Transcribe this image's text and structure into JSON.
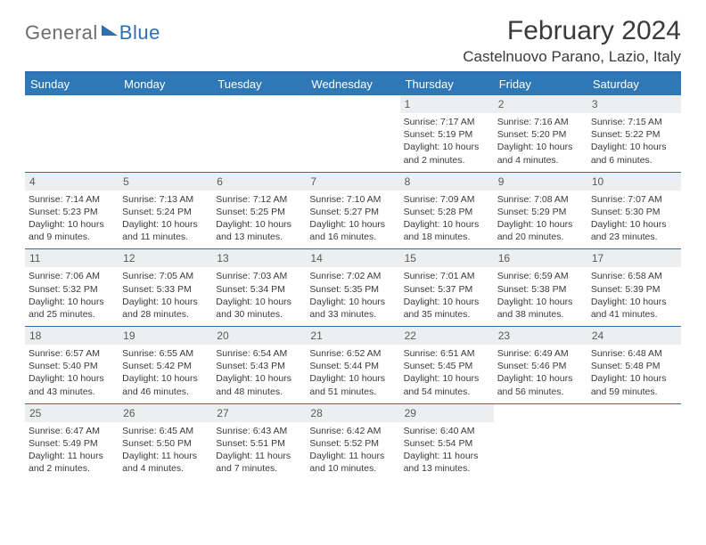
{
  "brand": {
    "part1": "General",
    "part2": "Blue"
  },
  "title": "February 2024",
  "location": "Castelnuovo Parano, Lazio, Italy",
  "colors": {
    "header_bg": "#2f78b8",
    "header_text": "#ffffff",
    "accent": "#2f6fb0",
    "daynum_bg": "#eceeef",
    "text": "#3a3a3a",
    "logo_gray": "#6e6e6e"
  },
  "weekdays": [
    "Sunday",
    "Monday",
    "Tuesday",
    "Wednesday",
    "Thursday",
    "Friday",
    "Saturday"
  ],
  "weeks": [
    [
      {
        "n": "",
        "sunrise": "",
        "sunset": "",
        "daylight": ""
      },
      {
        "n": "",
        "sunrise": "",
        "sunset": "",
        "daylight": ""
      },
      {
        "n": "",
        "sunrise": "",
        "sunset": "",
        "daylight": ""
      },
      {
        "n": "",
        "sunrise": "",
        "sunset": "",
        "daylight": ""
      },
      {
        "n": "1",
        "sunrise": "Sunrise: 7:17 AM",
        "sunset": "Sunset: 5:19 PM",
        "daylight": "Daylight: 10 hours and 2 minutes."
      },
      {
        "n": "2",
        "sunrise": "Sunrise: 7:16 AM",
        "sunset": "Sunset: 5:20 PM",
        "daylight": "Daylight: 10 hours and 4 minutes."
      },
      {
        "n": "3",
        "sunrise": "Sunrise: 7:15 AM",
        "sunset": "Sunset: 5:22 PM",
        "daylight": "Daylight: 10 hours and 6 minutes."
      }
    ],
    [
      {
        "n": "4",
        "sunrise": "Sunrise: 7:14 AM",
        "sunset": "Sunset: 5:23 PM",
        "daylight": "Daylight: 10 hours and 9 minutes."
      },
      {
        "n": "5",
        "sunrise": "Sunrise: 7:13 AM",
        "sunset": "Sunset: 5:24 PM",
        "daylight": "Daylight: 10 hours and 11 minutes."
      },
      {
        "n": "6",
        "sunrise": "Sunrise: 7:12 AM",
        "sunset": "Sunset: 5:25 PM",
        "daylight": "Daylight: 10 hours and 13 minutes."
      },
      {
        "n": "7",
        "sunrise": "Sunrise: 7:10 AM",
        "sunset": "Sunset: 5:27 PM",
        "daylight": "Daylight: 10 hours and 16 minutes."
      },
      {
        "n": "8",
        "sunrise": "Sunrise: 7:09 AM",
        "sunset": "Sunset: 5:28 PM",
        "daylight": "Daylight: 10 hours and 18 minutes."
      },
      {
        "n": "9",
        "sunrise": "Sunrise: 7:08 AM",
        "sunset": "Sunset: 5:29 PM",
        "daylight": "Daylight: 10 hours and 20 minutes."
      },
      {
        "n": "10",
        "sunrise": "Sunrise: 7:07 AM",
        "sunset": "Sunset: 5:30 PM",
        "daylight": "Daylight: 10 hours and 23 minutes."
      }
    ],
    [
      {
        "n": "11",
        "sunrise": "Sunrise: 7:06 AM",
        "sunset": "Sunset: 5:32 PM",
        "daylight": "Daylight: 10 hours and 25 minutes."
      },
      {
        "n": "12",
        "sunrise": "Sunrise: 7:05 AM",
        "sunset": "Sunset: 5:33 PM",
        "daylight": "Daylight: 10 hours and 28 minutes."
      },
      {
        "n": "13",
        "sunrise": "Sunrise: 7:03 AM",
        "sunset": "Sunset: 5:34 PM",
        "daylight": "Daylight: 10 hours and 30 minutes."
      },
      {
        "n": "14",
        "sunrise": "Sunrise: 7:02 AM",
        "sunset": "Sunset: 5:35 PM",
        "daylight": "Daylight: 10 hours and 33 minutes."
      },
      {
        "n": "15",
        "sunrise": "Sunrise: 7:01 AM",
        "sunset": "Sunset: 5:37 PM",
        "daylight": "Daylight: 10 hours and 35 minutes."
      },
      {
        "n": "16",
        "sunrise": "Sunrise: 6:59 AM",
        "sunset": "Sunset: 5:38 PM",
        "daylight": "Daylight: 10 hours and 38 minutes."
      },
      {
        "n": "17",
        "sunrise": "Sunrise: 6:58 AM",
        "sunset": "Sunset: 5:39 PM",
        "daylight": "Daylight: 10 hours and 41 minutes."
      }
    ],
    [
      {
        "n": "18",
        "sunrise": "Sunrise: 6:57 AM",
        "sunset": "Sunset: 5:40 PM",
        "daylight": "Daylight: 10 hours and 43 minutes."
      },
      {
        "n": "19",
        "sunrise": "Sunrise: 6:55 AM",
        "sunset": "Sunset: 5:42 PM",
        "daylight": "Daylight: 10 hours and 46 minutes."
      },
      {
        "n": "20",
        "sunrise": "Sunrise: 6:54 AM",
        "sunset": "Sunset: 5:43 PM",
        "daylight": "Daylight: 10 hours and 48 minutes."
      },
      {
        "n": "21",
        "sunrise": "Sunrise: 6:52 AM",
        "sunset": "Sunset: 5:44 PM",
        "daylight": "Daylight: 10 hours and 51 minutes."
      },
      {
        "n": "22",
        "sunrise": "Sunrise: 6:51 AM",
        "sunset": "Sunset: 5:45 PM",
        "daylight": "Daylight: 10 hours and 54 minutes."
      },
      {
        "n": "23",
        "sunrise": "Sunrise: 6:49 AM",
        "sunset": "Sunset: 5:46 PM",
        "daylight": "Daylight: 10 hours and 56 minutes."
      },
      {
        "n": "24",
        "sunrise": "Sunrise: 6:48 AM",
        "sunset": "Sunset: 5:48 PM",
        "daylight": "Daylight: 10 hours and 59 minutes."
      }
    ],
    [
      {
        "n": "25",
        "sunrise": "Sunrise: 6:47 AM",
        "sunset": "Sunset: 5:49 PM",
        "daylight": "Daylight: 11 hours and 2 minutes."
      },
      {
        "n": "26",
        "sunrise": "Sunrise: 6:45 AM",
        "sunset": "Sunset: 5:50 PM",
        "daylight": "Daylight: 11 hours and 4 minutes."
      },
      {
        "n": "27",
        "sunrise": "Sunrise: 6:43 AM",
        "sunset": "Sunset: 5:51 PM",
        "daylight": "Daylight: 11 hours and 7 minutes."
      },
      {
        "n": "28",
        "sunrise": "Sunrise: 6:42 AM",
        "sunset": "Sunset: 5:52 PM",
        "daylight": "Daylight: 11 hours and 10 minutes."
      },
      {
        "n": "29",
        "sunrise": "Sunrise: 6:40 AM",
        "sunset": "Sunset: 5:54 PM",
        "daylight": "Daylight: 11 hours and 13 minutes."
      },
      {
        "n": "",
        "sunrise": "",
        "sunset": "",
        "daylight": ""
      },
      {
        "n": "",
        "sunrise": "",
        "sunset": "",
        "daylight": ""
      }
    ]
  ]
}
